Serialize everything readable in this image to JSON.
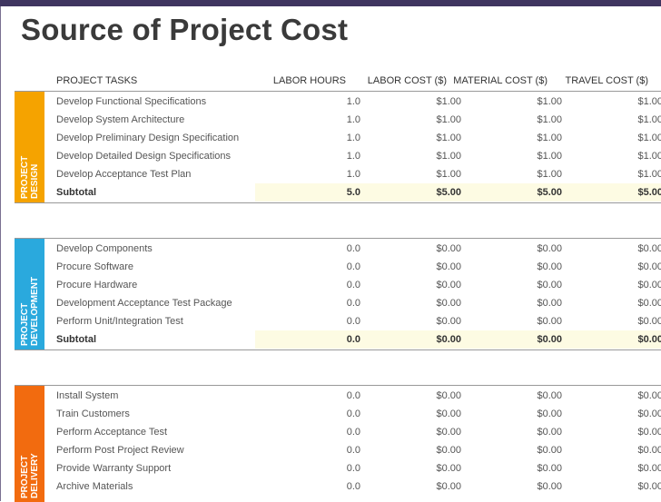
{
  "title": "Source of Project Cost",
  "columns": {
    "task": "PROJECT TASKS",
    "hours": "LABOR HOURS",
    "labor": "LABOR COST ($)",
    "material": "MATERIAL COST ($)",
    "travel": "TRAVEL COST ($)"
  },
  "colors": {
    "design": "#f5a300",
    "development": "#2aa9dd",
    "delivery": "#f26b0f",
    "subtotal_fill": "#fdfbe3"
  },
  "sections": [
    {
      "label_line1": "PROJECT",
      "label_line2": "DESIGN",
      "rows": [
        {
          "task": "Develop Functional Specifications",
          "hours": "1.0",
          "labor": "$1.00",
          "material": "$1.00",
          "travel": "$1.00"
        },
        {
          "task": "Develop System Architecture",
          "hours": "1.0",
          "labor": "$1.00",
          "material": "$1.00",
          "travel": "$1.00"
        },
        {
          "task": "Develop Preliminary Design Specification",
          "hours": "1.0",
          "labor": "$1.00",
          "material": "$1.00",
          "travel": "$1.00"
        },
        {
          "task": "Develop Detailed Design Specifications",
          "hours": "1.0",
          "labor": "$1.00",
          "material": "$1.00",
          "travel": "$1.00"
        },
        {
          "task": "Develop Acceptance Test Plan",
          "hours": "1.0",
          "labor": "$1.00",
          "material": "$1.00",
          "travel": "$1.00"
        }
      ],
      "subtotal": {
        "task": "Subtotal",
        "hours": "5.0",
        "labor": "$5.00",
        "material": "$5.00",
        "travel": "$5.00"
      }
    },
    {
      "label_line1": "PROJECT",
      "label_line2": "DEVELOPMENT",
      "rows": [
        {
          "task": "Develop Components",
          "hours": "0.0",
          "labor": "$0.00",
          "material": "$0.00",
          "travel": "$0.00"
        },
        {
          "task": "Procure Software",
          "hours": "0.0",
          "labor": "$0.00",
          "material": "$0.00",
          "travel": "$0.00"
        },
        {
          "task": "Procure Hardware",
          "hours": "0.0",
          "labor": "$0.00",
          "material": "$0.00",
          "travel": "$0.00"
        },
        {
          "task": "Development Acceptance Test Package",
          "hours": "0.0",
          "labor": "$0.00",
          "material": "$0.00",
          "travel": "$0.00"
        },
        {
          "task": "Perform Unit/Integration Test",
          "hours": "0.0",
          "labor": "$0.00",
          "material": "$0.00",
          "travel": "$0.00"
        }
      ],
      "subtotal": {
        "task": "Subtotal",
        "hours": "0.0",
        "labor": "$0.00",
        "material": "$0.00",
        "travel": "$0.00"
      }
    },
    {
      "label_line1": "PROJECT",
      "label_line2": "DELIVERY",
      "rows": [
        {
          "task": "Install System",
          "hours": "0.0",
          "labor": "$0.00",
          "material": "$0.00",
          "travel": "$0.00"
        },
        {
          "task": "Train Customers",
          "hours": "0.0",
          "labor": "$0.00",
          "material": "$0.00",
          "travel": "$0.00"
        },
        {
          "task": "Perform Acceptance Test",
          "hours": "0.0",
          "labor": "$0.00",
          "material": "$0.00",
          "travel": "$0.00"
        },
        {
          "task": "Perform Post Project Review",
          "hours": "0.0",
          "labor": "$0.00",
          "material": "$0.00",
          "travel": "$0.00"
        },
        {
          "task": "Provide Warranty Support",
          "hours": "0.0",
          "labor": "$0.00",
          "material": "$0.00",
          "travel": "$0.00"
        },
        {
          "task": "Archive Materials",
          "hours": "0.0",
          "labor": "$0.00",
          "material": "$0.00",
          "travel": "$0.00"
        }
      ]
    }
  ]
}
